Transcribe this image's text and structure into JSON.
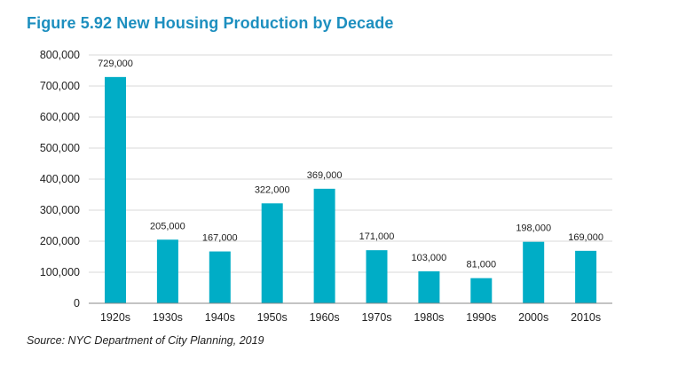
{
  "figure": {
    "title": "Figure 5.92 New Housing Production by Decade",
    "source": "Source: NYC Department of City Planning, 2019"
  },
  "colors": {
    "bar": "#00adc6",
    "title": "#1d8fbf",
    "grid": "#d9d9d9",
    "axis": "#888888"
  },
  "chart_data": {
    "type": "bar",
    "title": "Figure 5.92 New Housing Production by Decade",
    "xlabel": "",
    "ylabel": "",
    "categories": [
      "1920s",
      "1930s",
      "1940s",
      "1950s",
      "1960s",
      "1970s",
      "1980s",
      "1990s",
      "2000s",
      "2010s"
    ],
    "values": [
      729000,
      205000,
      167000,
      322000,
      369000,
      171000,
      103000,
      81000,
      198000,
      169000
    ],
    "data_labels": [
      "729,000",
      "205,000",
      "167,000",
      "322,000",
      "369,000",
      "171,000",
      "103,000",
      "81,000",
      "198,000",
      "169,000"
    ],
    "ylim": [
      0,
      800000
    ],
    "yticks": [
      0,
      100000,
      200000,
      300000,
      400000,
      500000,
      600000,
      700000,
      800000
    ],
    "ytick_labels": [
      "0",
      "100,000",
      "200,000",
      "300,000",
      "400,000",
      "500,000",
      "600,000",
      "700,000",
      "800,000"
    ],
    "grid": true,
    "legend": "none"
  }
}
